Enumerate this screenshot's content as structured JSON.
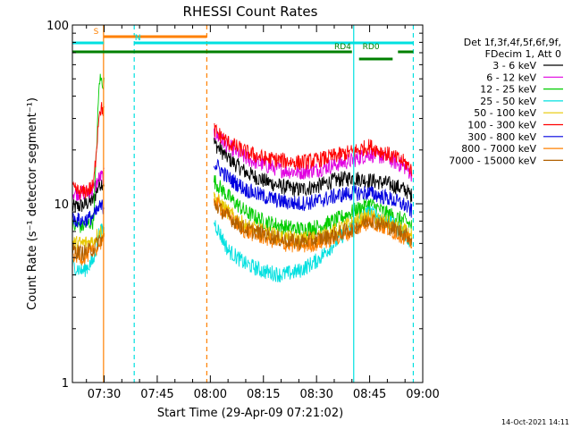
{
  "chart_data": {
    "type": "line",
    "title": "RHESSI Count Rates",
    "xlabel": "Start Time (29-Apr-09 07:21:02)",
    "ylabel": "Count Rate (s⁻¹ detector segment⁻¹)",
    "x_scale": "time",
    "y_scale": "log",
    "xlim": [
      "07:21:02",
      "09:00:00"
    ],
    "ylim": [
      1,
      100
    ],
    "x_ticks": [
      "07:30",
      "07:45",
      "08:00",
      "08:15",
      "08:30",
      "08:45",
      "09:00"
    ],
    "y_ticks": [
      {
        "value": 1,
        "label": "1"
      },
      {
        "value": 10,
        "label": "10"
      },
      {
        "value": 100,
        "label": "100"
      }
    ],
    "grid": false,
    "legend_position": "right",
    "legend_header": [
      "Det 1f,3f,4f,5f,6f,9f,",
      "FDecim 1, Att 0"
    ],
    "data_gap": [
      "07:30:00",
      "08:01:00"
    ],
    "series": [
      {
        "name": "3 - 6 keV",
        "color": "#000000",
        "x": [
          "07:21:02",
          "07:24",
          "07:27",
          "07:28:40",
          "08:01",
          "08:05",
          "08:10",
          "08:15",
          "08:20",
          "08:25",
          "08:30",
          "08:35",
          "08:40",
          "08:45",
          "08:50",
          "08:55",
          "08:57"
        ],
        "y": [
          9.5,
          9.8,
          10.5,
          13,
          22,
          18,
          15,
          13.5,
          12.5,
          12,
          12.5,
          13.5,
          14,
          13.5,
          13,
          12,
          11
        ]
      },
      {
        "name": "6 - 12 keV",
        "color": "#e000e0",
        "x": [
          "07:21:02",
          "07:24",
          "07:27",
          "07:28:40",
          "08:01",
          "08:05",
          "08:10",
          "08:15",
          "08:20",
          "08:25",
          "08:30",
          "08:35",
          "08:40",
          "08:45",
          "08:50",
          "08:55",
          "08:57"
        ],
        "y": [
          11.5,
          11.5,
          12,
          14,
          25,
          21,
          18,
          16.5,
          15.5,
          15,
          15.5,
          16.5,
          17.5,
          19,
          18,
          16,
          14.5
        ]
      },
      {
        "name": "12 - 25 keV",
        "color": "#00cc00",
        "x": [
          "07:21:02",
          "07:24",
          "07:27",
          "07:28:40",
          "08:01",
          "08:05",
          "08:10",
          "08:15",
          "08:20",
          "08:25",
          "08:30",
          "08:35",
          "08:40",
          "08:45",
          "08:50",
          "08:55",
          "08:57"
        ],
        "y": [
          7.5,
          7.5,
          8,
          50,
          13.5,
          11,
          9,
          8,
          7.5,
          7.2,
          7.4,
          8,
          9,
          10,
          8.8,
          8,
          7.5
        ]
      },
      {
        "name": "25 - 50 keV",
        "color": "#00e0e0",
        "x": [
          "07:21:02",
          "07:24",
          "07:27",
          "07:28:40",
          "08:01",
          "08:05",
          "08:10",
          "08:15",
          "08:20",
          "08:25",
          "08:30",
          "08:35",
          "08:40",
          "08:45",
          "08:50",
          "08:55",
          "08:57"
        ],
        "y": [
          4.5,
          4.2,
          4.8,
          7,
          8,
          5.5,
          4.6,
          4.2,
          4,
          4.2,
          4.8,
          6,
          7.5,
          9,
          8,
          6.8,
          6
        ]
      },
      {
        "name": "50 - 100 keV",
        "color": "#e8c800",
        "x": [
          "07:21:02",
          "07:24",
          "07:27",
          "07:28:40",
          "08:01",
          "08:05",
          "08:10",
          "08:15",
          "08:20",
          "08:25",
          "08:30",
          "08:35",
          "08:40",
          "08:45",
          "08:50",
          "08:55",
          "08:57"
        ],
        "y": [
          6,
          6,
          6.2,
          7,
          11,
          9,
          7.5,
          7,
          6.5,
          6.3,
          6.5,
          7,
          7.8,
          8.5,
          7.8,
          7,
          6.5
        ]
      },
      {
        "name": "100 - 300 keV",
        "color": "#ff0000",
        "x": [
          "07:21:02",
          "07:24",
          "07:27",
          "07:28:40",
          "08:01",
          "08:05",
          "08:10",
          "08:15",
          "08:20",
          "08:25",
          "08:30",
          "08:35",
          "08:40",
          "08:45",
          "08:50",
          "08:55",
          "08:57"
        ],
        "y": [
          12,
          11.5,
          12.5,
          34,
          26,
          22,
          19.5,
          18,
          17.5,
          17,
          17.5,
          18.5,
          19.5,
          21,
          19,
          17,
          15.5
        ]
      },
      {
        "name": "300 - 800 keV",
        "color": "#0000e0",
        "x": [
          "07:21:02",
          "07:24",
          "07:27",
          "07:28:40",
          "08:01",
          "08:05",
          "08:10",
          "08:15",
          "08:20",
          "08:25",
          "08:30",
          "08:35",
          "08:40",
          "08:45",
          "08:50",
          "08:55",
          "08:57"
        ],
        "y": [
          8.2,
          8,
          8.5,
          9.5,
          17,
          14,
          12,
          11,
          10.3,
          10,
          10.3,
          11,
          11.5,
          11.5,
          10.8,
          9.8,
          9
        ]
      },
      {
        "name": "800 - 7000 keV",
        "color": "#ff8000",
        "x": [
          "07:21:02",
          "07:24",
          "07:27",
          "07:28:40",
          "08:01",
          "08:05",
          "08:10",
          "08:15",
          "08:20",
          "08:25",
          "08:30",
          "08:35",
          "08:40",
          "08:45",
          "08:50",
          "08:55",
          "08:57"
        ],
        "y": [
          5.2,
          5,
          5.4,
          6,
          10.5,
          8.5,
          7,
          6.5,
          6,
          5.8,
          6,
          6.4,
          7,
          8,
          7.2,
          6.5,
          6
        ]
      },
      {
        "name": "7000 - 15000 keV",
        "color": "#b06000",
        "x": [
          "07:21:02",
          "07:24",
          "07:27",
          "07:28:40",
          "08:01",
          "08:05",
          "08:10",
          "08:15",
          "08:20",
          "08:25",
          "08:30",
          "08:35",
          "08:40",
          "08:45",
          "08:50",
          "08:55",
          "08:57"
        ],
        "y": [
          5.5,
          5.3,
          5.6,
          6.3,
          10,
          8.5,
          7.2,
          6.8,
          6.3,
          6.1,
          6.3,
          6.7,
          7.2,
          8.2,
          7.5,
          6.8,
          6.3
        ]
      }
    ],
    "vertical_markers": [
      {
        "time": "07:29:50",
        "color": "#ff8000",
        "style": "solid"
      },
      {
        "time": "07:38:30",
        "color": "#00e0e0",
        "style": "dashed"
      },
      {
        "time": "07:59:00",
        "color": "#ff8000",
        "style": "dashed"
      },
      {
        "time": "08:40:30",
        "color": "#00e0e0",
        "style": "solid"
      },
      {
        "time": "08:57:20",
        "color": "#00e0e0",
        "style": "dashed"
      }
    ],
    "flag_bars": [
      {
        "label": "S",
        "color": "#ff8000",
        "start": "07:29:50",
        "end": "07:59:00",
        "label_time": "07:27:00",
        "level": 1
      },
      {
        "label": "N",
        "color": "#00e0e0",
        "start": "07:21:02",
        "end": "07:29:50",
        "label_time": "07:38:40",
        "level": 2
      },
      {
        "label": "N",
        "color": "#00e0e0",
        "start": "07:38:30",
        "end": "08:40:30",
        "label_time": "07:38:40",
        "level": 2
      },
      {
        "label": "",
        "color": "#00e0e0",
        "start": "08:40:30",
        "end": "08:57:20",
        "label_time": "",
        "level": 2
      },
      {
        "label": "RD4",
        "color": "#008000",
        "start": "07:21:02",
        "end": "08:40:00",
        "label_time": "08:35:00",
        "level": 3
      },
      {
        "label": "RD0",
        "color": "#008000",
        "start": "08:53:00",
        "end": "08:57:20",
        "label_time": "08:43:00",
        "level": 3
      },
      {
        "label": "",
        "color": "#008000",
        "start": "08:42:00",
        "end": "08:51:30",
        "label_time": "",
        "level": 4
      }
    ],
    "footer": "14-Oct-2021 14:11"
  }
}
